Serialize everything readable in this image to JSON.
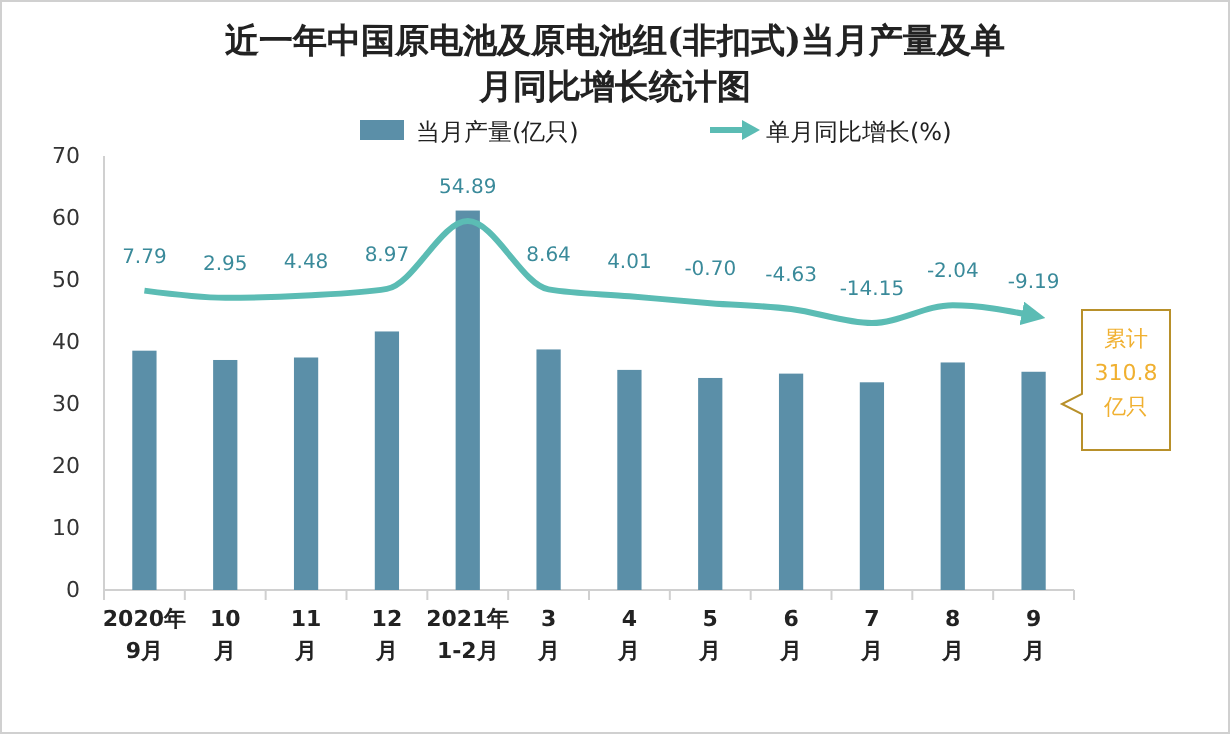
{
  "chart_data": {
    "type": "bar",
    "title": "近一年中国原电池及原电池组(非扣式)当月产量及单月同比增长统计图",
    "categories": [
      "2020年\n9月",
      "10\n月",
      "11\n月",
      "12\n月",
      "2021年\n1-2月",
      "3\n月",
      "4\n月",
      "5\n月",
      "6\n月",
      "7\n月",
      "8\n月",
      "9\n月"
    ],
    "series": [
      {
        "name": "当月产量(亿只)",
        "color": "#5b8fa8",
        "values": [
          38.6,
          37.1,
          37.5,
          41.7,
          61.2,
          38.8,
          35.5,
          34.2,
          34.9,
          33.5,
          36.7,
          35.2
        ]
      },
      {
        "name": "单月同比增长(%)",
        "type": "line",
        "axis": "y2",
        "color": "#5bbcb4",
        "values": [
          7.79,
          2.95,
          4.48,
          8.97,
          54.89,
          8.64,
          4.01,
          -0.7,
          -4.63,
          -14.15,
          -2.04,
          -9.19
        ],
        "value_labels": [
          "7.79",
          "2.95",
          "4.48",
          "8.97",
          "54.89",
          "8.64",
          "4.01",
          "-0.70",
          "-4.63",
          "-14.15",
          "-2.04",
          "-9.19"
        ]
      }
    ],
    "ylim": [
      0,
      70
    ],
    "yticks": [
      0,
      10,
      20,
      30,
      40,
      50,
      60,
      70
    ],
    "y2lim": [
      -195,
      99
    ],
    "legend": "top",
    "grid": false,
    "annotations": [
      "累计\n310.8\n亿只"
    ]
  }
}
